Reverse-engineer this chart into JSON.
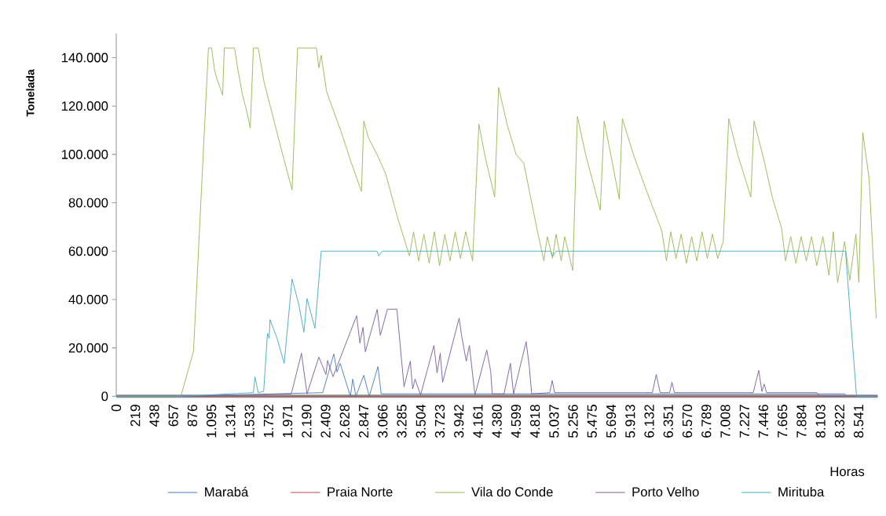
{
  "chart_data": {
    "type": "line",
    "xlabel": "Horas",
    "ylabel": "Tonelada",
    "xlim": [
      0,
      8760
    ],
    "ylim": [
      0,
      150000
    ],
    "xticks": [
      0,
      219,
      438,
      657,
      876,
      {
        "value": 1095,
        "label": "1.095"
      },
      {
        "value": 1314,
        "label": "1.314"
      },
      {
        "value": 1533,
        "label": "1.533"
      },
      {
        "value": 1752,
        "label": "1.752"
      },
      {
        "value": 1971,
        "label": "1.971"
      },
      {
        "value": 2190,
        "label": "2.190"
      },
      {
        "value": 2409,
        "label": "2.409"
      },
      {
        "value": 2628,
        "label": "2.628"
      },
      {
        "value": 2847,
        "label": "2.847"
      },
      {
        "value": 3066,
        "label": "3.066"
      },
      {
        "value": 3285,
        "label": "3.285"
      },
      {
        "value": 3504,
        "label": "3.504"
      },
      {
        "value": 3723,
        "label": "3.723"
      },
      {
        "value": 3942,
        "label": "3.942"
      },
      {
        "value": 4161,
        "label": "4.161"
      },
      {
        "value": 4380,
        "label": "4.380"
      },
      {
        "value": 4599,
        "label": "4.599"
      },
      {
        "value": 4818,
        "label": "4.818"
      },
      {
        "value": 5037,
        "label": "5.037"
      },
      {
        "value": 5256,
        "label": "5.256"
      },
      {
        "value": 5475,
        "label": "5.475"
      },
      {
        "value": 5694,
        "label": "5.694"
      },
      {
        "value": 5913,
        "label": "5.913"
      },
      {
        "value": 6132,
        "label": "6.132"
      },
      {
        "value": 6351,
        "label": "6.351"
      },
      {
        "value": 6570,
        "label": "6.570"
      },
      {
        "value": 6789,
        "label": "6.789"
      },
      {
        "value": 7008,
        "label": "7.008"
      },
      {
        "value": 7227,
        "label": "7.227"
      },
      {
        "value": 7446,
        "label": "7.446"
      },
      {
        "value": 7665,
        "label": "7.665"
      },
      {
        "value": 7884,
        "label": "7.884"
      },
      {
        "value": 8103,
        "label": "8.103"
      },
      {
        "value": 8322,
        "label": "8.322"
      },
      {
        "value": 8541,
        "label": "8.541"
      }
    ],
    "yticks": [
      0,
      {
        "value": 20000,
        "label": "20.000"
      },
      {
        "value": 40000,
        "label": "40.000"
      },
      {
        "value": 60000,
        "label": "60.000"
      },
      {
        "value": 80000,
        "label": "80.000"
      },
      {
        "value": 100000,
        "label": "100.000"
      },
      {
        "value": 120000,
        "label": "120.000"
      },
      {
        "value": 140000,
        "label": "140.000"
      }
    ],
    "legend": "bottom",
    "marker": "none",
    "line_style": "solid",
    "series": [
      {
        "name": "Marabá",
        "color": "#4a7ebb",
        "x": [
          0,
          762,
          2376,
          2503,
          2540,
          2576,
          2694,
          2721,
          2757,
          2848,
          2911,
          3011,
          3048,
          8381,
          8400,
          8760
        ],
        "values": [
          0,
          0,
          1500,
          17500,
          10000,
          13600,
          0,
          7100,
          0,
          8700,
          0,
          12300,
          1000,
          1000,
          0,
          0
        ]
      },
      {
        "name": "Praia Norte",
        "color": "#be4b48",
        "x": [
          0,
          8760
        ],
        "values": [
          0,
          0
        ]
      },
      {
        "name": "Vila do Conde",
        "color": "#98b954",
        "x": [
          0,
          744,
          889,
          1061,
          1097,
          1130,
          1160,
          1190,
          1224,
          1243,
          1361,
          1400,
          1450,
          1500,
          1542,
          1578,
          1633,
          1700,
          1800,
          1900,
          2023,
          2086,
          2304,
          2331,
          2358,
          2420,
          2500,
          2600,
          2700,
          2821,
          2848,
          2900,
          3000,
          3100,
          3238,
          3374,
          3420,
          3480,
          3540,
          3600,
          3660,
          3720,
          3780,
          3840,
          3900,
          3960,
          4020,
          4100,
          4172,
          4250,
          4354,
          4399,
          4500,
          4600,
          4689,
          4852,
          4920,
          4960,
          5020,
          5060,
          5120,
          5160,
          5252,
          5306,
          5400,
          5569,
          5614,
          5700,
          5787,
          5823,
          5950,
          6100,
          6276,
          6330,
          6380,
          6440,
          6500,
          6560,
          6620,
          6680,
          6740,
          6800,
          6860,
          6920,
          6984,
          7047,
          7150,
          7301,
          7338,
          7450,
          7550,
          7655,
          7700,
          7760,
          7820,
          7880,
          7940,
          8000,
          8060,
          8130,
          8200,
          8250,
          8300,
          8380,
          8440,
          8510,
          8544,
          8589,
          8662,
          8744
        ],
        "values": [
          0,
          0,
          18700,
          144000,
          144000,
          135000,
          131000,
          128000,
          124500,
          144000,
          144000,
          135000,
          125000,
          118000,
          110900,
          144000,
          144000,
          130000,
          116000,
          102000,
          85300,
          144000,
          144000,
          135800,
          141000,
          126000,
          118000,
          108000,
          97000,
          84700,
          113800,
          107000,
          100000,
          92000,
          73700,
          58000,
          68000,
          56000,
          67000,
          55000,
          68000,
          54000,
          67000,
          56000,
          68000,
          57000,
          68000,
          56000,
          112500,
          98000,
          82400,
          127700,
          112000,
          100000,
          96300,
          67200,
          56000,
          66000,
          57000,
          67000,
          56000,
          66000,
          52000,
          115700,
          100000,
          77000,
          113800,
          98000,
          81500,
          114800,
          100000,
          85000,
          68500,
          56000,
          68000,
          57000,
          67000,
          55000,
          66000,
          56000,
          68000,
          57000,
          67000,
          57000,
          64000,
          114800,
          100000,
          82400,
          113800,
          98000,
          82000,
          69500,
          56000,
          66000,
          55000,
          66000,
          56000,
          66000,
          54000,
          66000,
          50000,
          68000,
          47000,
          64000,
          48000,
          67000,
          47000,
          109000,
          90000,
          32300
        ]
      },
      {
        "name": "Porto Velho",
        "color": "#7d60a0",
        "x": [
          0,
          762,
          2014,
          2131,
          2195,
          2331,
          2413,
          2431,
          2494,
          2766,
          2803,
          2839,
          2866,
          3002,
          3038,
          3120,
          3229,
          3311,
          3383,
          3410,
          3438,
          3501,
          3655,
          3691,
          3728,
          3755,
          3945,
          3973,
          4027,
          4063,
          4127,
          4263,
          4308,
          4326,
          4462,
          4535,
          4571,
          4716,
          4752,
          4780,
          4988,
          5016,
          5043,
          6168,
          6213,
          6258,
          6367,
          6394,
          6422,
          7329,
          7392,
          7428,
          7455,
          7483,
          8063,
          8090,
          8760
        ],
        "values": [
          0,
          0,
          1000,
          17800,
          1000,
          16200,
          9000,
          14800,
          8100,
          33300,
          22000,
          28500,
          18400,
          35900,
          25200,
          36000,
          36000,
          3900,
          14500,
          3000,
          7100,
          500,
          21000,
          9700,
          17800,
          5800,
          32300,
          25200,
          14500,
          21000,
          500,
          19100,
          10300,
          1000,
          1000,
          13600,
          1000,
          22600,
          12300,
          1000,
          1500,
          6500,
          1500,
          1500,
          9000,
          1500,
          1500,
          5800,
          1500,
          1500,
          10700,
          2000,
          5000,
          1500,
          1500,
          0,
          0
        ]
      },
      {
        "name": "Mirituba",
        "color": "#46aac5",
        "x": [
          0,
          762,
          1578,
          1596,
          1633,
          1696,
          1740,
          1760,
          1769,
          1850,
          1932,
          2023,
          2100,
          2159,
          2195,
          2286,
          2358,
          3000,
          3020,
          3060,
          5000,
          5020,
          5060,
          8390,
          8517,
          8760
        ],
        "values": [
          0,
          0,
          1500,
          8000,
          1500,
          2000,
          26000,
          24000,
          31700,
          24000,
          13600,
          48500,
          38000,
          26500,
          40400,
          28100,
          60000,
          60000,
          58000,
          60000,
          60000,
          58000,
          60000,
          60000,
          0,
          0
        ]
      }
    ]
  }
}
